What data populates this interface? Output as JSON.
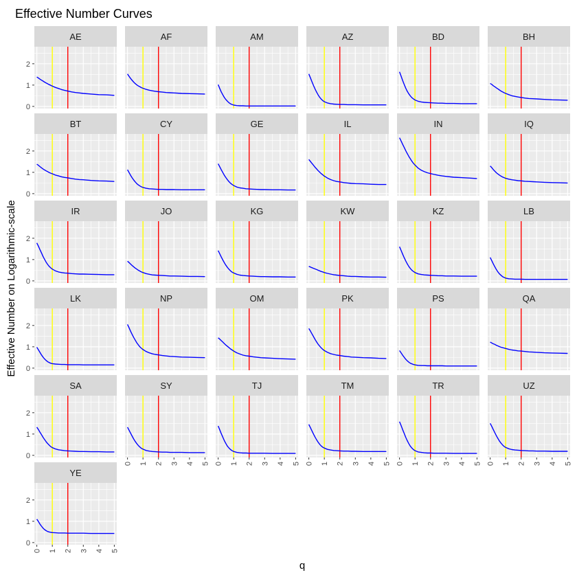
{
  "chart_data": {
    "type": "line",
    "title": "Effective Number Curves",
    "xlabel": "q",
    "ylabel": "Effective Number on Logarithmic-scale",
    "xlim": [
      0,
      5
    ],
    "ylim": [
      -0.1,
      2.8
    ],
    "x_ticks": [
      "0",
      "1",
      "2",
      "3",
      "4",
      "5"
    ],
    "y_ticks": [
      "0",
      "1",
      "2"
    ],
    "facet_columns": 6,
    "grid": true,
    "vlines": [
      {
        "x": 1,
        "color": "#ffff00"
      },
      {
        "x": 2,
        "color": "#ff0000"
      }
    ],
    "line_color": "#0000ff",
    "panel_background": "#ebebeb",
    "strip_background": "#d9d9d9",
    "x": [
      0,
      0.1,
      0.2,
      0.3,
      0.4,
      0.5,
      0.6,
      0.7,
      0.8,
      0.9,
      1.0,
      1.2,
      1.4,
      1.6,
      1.8,
      2.0,
      2.25,
      2.5,
      2.75,
      3.0,
      3.5,
      4.0,
      4.5,
      5.0
    ],
    "panels": [
      {
        "label": "AE",
        "values": [
          1.38,
          1.33,
          1.28,
          1.23,
          1.19,
          1.14,
          1.1,
          1.06,
          1.02,
          0.99,
          0.95,
          0.89,
          0.84,
          0.79,
          0.75,
          0.72,
          0.68,
          0.65,
          0.63,
          0.61,
          0.58,
          0.55,
          0.54,
          0.52
        ]
      },
      {
        "label": "AF",
        "values": [
          1.52,
          1.41,
          1.31,
          1.22,
          1.14,
          1.07,
          1.01,
          0.96,
          0.92,
          0.88,
          0.85,
          0.8,
          0.76,
          0.73,
          0.71,
          0.69,
          0.67,
          0.65,
          0.64,
          0.63,
          0.61,
          0.6,
          0.59,
          0.58
        ]
      },
      {
        "label": "AM",
        "values": [
          1.02,
          0.84,
          0.68,
          0.54,
          0.42,
          0.32,
          0.24,
          0.17,
          0.12,
          0.09,
          0.06,
          0.04,
          0.03,
          0.03,
          0.02,
          0.02,
          0.02,
          0.02,
          0.02,
          0.02,
          0.02,
          0.02,
          0.02,
          0.02
        ]
      },
      {
        "label": "AZ",
        "values": [
          1.52,
          1.34,
          1.16,
          0.98,
          0.82,
          0.67,
          0.54,
          0.43,
          0.34,
          0.27,
          0.22,
          0.16,
          0.13,
          0.11,
          0.1,
          0.09,
          0.09,
          0.08,
          0.08,
          0.08,
          0.07,
          0.07,
          0.07,
          0.07
        ]
      },
      {
        "label": "BD",
        "values": [
          1.62,
          1.42,
          1.22,
          1.03,
          0.86,
          0.71,
          0.59,
          0.49,
          0.41,
          0.35,
          0.3,
          0.24,
          0.21,
          0.19,
          0.18,
          0.17,
          0.16,
          0.15,
          0.15,
          0.14,
          0.14,
          0.13,
          0.13,
          0.13
        ]
      },
      {
        "label": "BH",
        "values": [
          1.08,
          1.03,
          0.97,
          0.92,
          0.87,
          0.82,
          0.77,
          0.72,
          0.68,
          0.64,
          0.61,
          0.55,
          0.5,
          0.47,
          0.44,
          0.42,
          0.39,
          0.37,
          0.36,
          0.35,
          0.33,
          0.31,
          0.3,
          0.29
        ]
      },
      {
        "label": "BT",
        "values": [
          1.38,
          1.33,
          1.27,
          1.21,
          1.16,
          1.11,
          1.07,
          1.03,
          0.99,
          0.96,
          0.93,
          0.87,
          0.83,
          0.79,
          0.76,
          0.74,
          0.71,
          0.68,
          0.66,
          0.65,
          0.62,
          0.6,
          0.59,
          0.57
        ]
      },
      {
        "label": "CY",
        "values": [
          1.12,
          0.99,
          0.86,
          0.74,
          0.64,
          0.55,
          0.47,
          0.41,
          0.36,
          0.32,
          0.29,
          0.25,
          0.23,
          0.22,
          0.21,
          0.2,
          0.2,
          0.19,
          0.19,
          0.19,
          0.18,
          0.18,
          0.18,
          0.18
        ]
      },
      {
        "label": "GE",
        "values": [
          1.4,
          1.26,
          1.12,
          0.99,
          0.86,
          0.75,
          0.65,
          0.56,
          0.49,
          0.43,
          0.38,
          0.31,
          0.27,
          0.25,
          0.23,
          0.22,
          0.21,
          0.2,
          0.19,
          0.19,
          0.18,
          0.18,
          0.17,
          0.17
        ]
      },
      {
        "label": "IL",
        "values": [
          1.6,
          1.51,
          1.42,
          1.33,
          1.24,
          1.16,
          1.08,
          1.01,
          0.94,
          0.88,
          0.82,
          0.73,
          0.66,
          0.61,
          0.57,
          0.55,
          0.52,
          0.5,
          0.48,
          0.47,
          0.46,
          0.44,
          0.43,
          0.43
        ]
      },
      {
        "label": "IN",
        "values": [
          2.62,
          2.47,
          2.32,
          2.17,
          2.02,
          1.88,
          1.75,
          1.63,
          1.52,
          1.42,
          1.34,
          1.2,
          1.1,
          1.03,
          0.98,
          0.94,
          0.9,
          0.86,
          0.83,
          0.81,
          0.77,
          0.75,
          0.73,
          0.71
        ]
      },
      {
        "label": "IQ",
        "values": [
          1.3,
          1.22,
          1.13,
          1.05,
          0.98,
          0.92,
          0.87,
          0.82,
          0.78,
          0.75,
          0.72,
          0.68,
          0.65,
          0.63,
          0.61,
          0.6,
          0.58,
          0.57,
          0.56,
          0.55,
          0.53,
          0.52,
          0.51,
          0.5
        ]
      },
      {
        "label": "IR",
        "values": [
          1.78,
          1.63,
          1.47,
          1.31,
          1.15,
          1.01,
          0.88,
          0.77,
          0.68,
          0.61,
          0.55,
          0.47,
          0.42,
          0.39,
          0.37,
          0.36,
          0.34,
          0.33,
          0.32,
          0.32,
          0.31,
          0.3,
          0.29,
          0.29
        ]
      },
      {
        "label": "JO",
        "values": [
          0.92,
          0.86,
          0.79,
          0.72,
          0.66,
          0.6,
          0.55,
          0.5,
          0.46,
          0.42,
          0.39,
          0.34,
          0.31,
          0.28,
          0.27,
          0.26,
          0.25,
          0.24,
          0.23,
          0.23,
          0.22,
          0.21,
          0.21,
          0.2
        ]
      },
      {
        "label": "KG",
        "values": [
          1.42,
          1.27,
          1.12,
          0.98,
          0.85,
          0.73,
          0.63,
          0.54,
          0.47,
          0.41,
          0.37,
          0.31,
          0.27,
          0.25,
          0.24,
          0.23,
          0.22,
          0.21,
          0.2,
          0.2,
          0.19,
          0.19,
          0.18,
          0.18
        ]
      },
      {
        "label": "KW",
        "values": [
          0.68,
          0.65,
          0.62,
          0.59,
          0.56,
          0.53,
          0.5,
          0.47,
          0.44,
          0.42,
          0.39,
          0.35,
          0.32,
          0.29,
          0.27,
          0.25,
          0.24,
          0.22,
          0.21,
          0.21,
          0.19,
          0.18,
          0.18,
          0.17
        ]
      },
      {
        "label": "KZ",
        "values": [
          1.6,
          1.43,
          1.26,
          1.09,
          0.94,
          0.8,
          0.68,
          0.58,
          0.5,
          0.44,
          0.39,
          0.33,
          0.3,
          0.28,
          0.27,
          0.26,
          0.25,
          0.24,
          0.24,
          0.23,
          0.23,
          0.22,
          0.22,
          0.22
        ]
      },
      {
        "label": "LB",
        "values": [
          1.1,
          0.95,
          0.8,
          0.66,
          0.53,
          0.42,
          0.33,
          0.26,
          0.2,
          0.16,
          0.13,
          0.1,
          0.09,
          0.08,
          0.08,
          0.08,
          0.07,
          0.07,
          0.07,
          0.07,
          0.07,
          0.07,
          0.07,
          0.07
        ]
      },
      {
        "label": "LK",
        "values": [
          0.98,
          0.86,
          0.74,
          0.62,
          0.52,
          0.43,
          0.36,
          0.3,
          0.26,
          0.23,
          0.21,
          0.19,
          0.18,
          0.17,
          0.17,
          0.16,
          0.16,
          0.16,
          0.16,
          0.15,
          0.15,
          0.15,
          0.15,
          0.15
        ]
      },
      {
        "label": "NP",
        "values": [
          2.05,
          1.89,
          1.73,
          1.58,
          1.44,
          1.31,
          1.19,
          1.09,
          1.0,
          0.93,
          0.87,
          0.78,
          0.72,
          0.67,
          0.64,
          0.62,
          0.59,
          0.57,
          0.55,
          0.54,
          0.52,
          0.51,
          0.5,
          0.49
        ]
      },
      {
        "label": "OM",
        "values": [
          1.42,
          1.36,
          1.29,
          1.22,
          1.15,
          1.08,
          1.02,
          0.96,
          0.9,
          0.85,
          0.8,
          0.72,
          0.66,
          0.61,
          0.58,
          0.56,
          0.53,
          0.51,
          0.49,
          0.48,
          0.46,
          0.44,
          0.43,
          0.42
        ]
      },
      {
        "label": "PK",
        "values": [
          1.86,
          1.74,
          1.61,
          1.48,
          1.35,
          1.23,
          1.12,
          1.03,
          0.95,
          0.88,
          0.82,
          0.74,
          0.68,
          0.64,
          0.61,
          0.59,
          0.56,
          0.54,
          0.52,
          0.51,
          0.49,
          0.48,
          0.46,
          0.45
        ]
      },
      {
        "label": "PS",
        "values": [
          0.82,
          0.72,
          0.61,
          0.51,
          0.42,
          0.34,
          0.28,
          0.23,
          0.2,
          0.17,
          0.15,
          0.13,
          0.12,
          0.12,
          0.11,
          0.11,
          0.11,
          0.11,
          0.11,
          0.1,
          0.1,
          0.1,
          0.1,
          0.1
        ]
      },
      {
        "label": "QA",
        "values": [
          1.22,
          1.18,
          1.14,
          1.11,
          1.07,
          1.04,
          1.01,
          0.98,
          0.96,
          0.94,
          0.92,
          0.88,
          0.85,
          0.83,
          0.81,
          0.8,
          0.78,
          0.76,
          0.75,
          0.74,
          0.72,
          0.71,
          0.7,
          0.69
        ]
      },
      {
        "label": "SA",
        "values": [
          1.32,
          1.21,
          1.09,
          0.97,
          0.85,
          0.74,
          0.64,
          0.55,
          0.48,
          0.41,
          0.36,
          0.3,
          0.26,
          0.24,
          0.22,
          0.21,
          0.2,
          0.19,
          0.18,
          0.18,
          0.17,
          0.17,
          0.16,
          0.16
        ]
      },
      {
        "label": "SY",
        "values": [
          1.32,
          1.18,
          1.04,
          0.9,
          0.77,
          0.65,
          0.55,
          0.46,
          0.39,
          0.33,
          0.29,
          0.23,
          0.2,
          0.18,
          0.17,
          0.16,
          0.15,
          0.15,
          0.14,
          0.14,
          0.14,
          0.13,
          0.13,
          0.13
        ]
      },
      {
        "label": "TJ",
        "values": [
          1.38,
          1.2,
          1.02,
          0.85,
          0.69,
          0.55,
          0.43,
          0.34,
          0.27,
          0.22,
          0.18,
          0.14,
          0.12,
          0.11,
          0.11,
          0.1,
          0.1,
          0.1,
          0.1,
          0.1,
          0.09,
          0.09,
          0.09,
          0.09
        ]
      },
      {
        "label": "TM",
        "values": [
          1.45,
          1.3,
          1.15,
          1.0,
          0.86,
          0.73,
          0.62,
          0.52,
          0.44,
          0.38,
          0.34,
          0.28,
          0.25,
          0.23,
          0.22,
          0.21,
          0.2,
          0.2,
          0.19,
          0.19,
          0.18,
          0.18,
          0.18,
          0.18
        ]
      },
      {
        "label": "TR",
        "values": [
          1.58,
          1.4,
          1.21,
          1.03,
          0.85,
          0.69,
          0.55,
          0.43,
          0.34,
          0.27,
          0.22,
          0.16,
          0.14,
          0.12,
          0.11,
          0.11,
          0.1,
          0.1,
          0.1,
          0.1,
          0.09,
          0.09,
          0.09,
          0.09
        ]
      },
      {
        "label": "UZ",
        "values": [
          1.5,
          1.36,
          1.21,
          1.06,
          0.92,
          0.79,
          0.67,
          0.57,
          0.49,
          0.42,
          0.37,
          0.31,
          0.27,
          0.25,
          0.24,
          0.23,
          0.22,
          0.21,
          0.21,
          0.2,
          0.2,
          0.19,
          0.19,
          0.19
        ]
      },
      {
        "label": "YE",
        "values": [
          1.1,
          0.99,
          0.87,
          0.77,
          0.68,
          0.61,
          0.56,
          0.52,
          0.5,
          0.48,
          0.47,
          0.46,
          0.45,
          0.45,
          0.45,
          0.44,
          0.44,
          0.44,
          0.44,
          0.44,
          0.43,
          0.43,
          0.43,
          0.43
        ]
      }
    ]
  }
}
